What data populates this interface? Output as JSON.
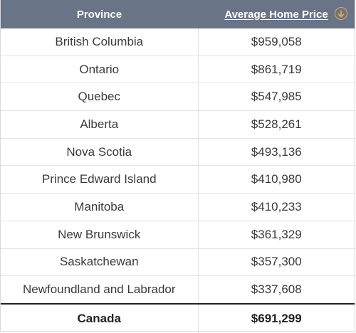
{
  "table": {
    "headers": {
      "province": "Province",
      "price": "Average Home Price"
    },
    "sort_icon": "arrow-down-circle-icon",
    "accent_color": "#f2a93b",
    "header_bg": "#697586",
    "rows": [
      {
        "province": "British Columbia",
        "price": "$959,058"
      },
      {
        "province": "Ontario",
        "price": "$861,719"
      },
      {
        "province": "Quebec",
        "price": "$547,985"
      },
      {
        "province": "Alberta",
        "price": "$528,261"
      },
      {
        "province": "Nova Scotia",
        "price": "$493,136"
      },
      {
        "province": "Prince Edward Island",
        "price": "$410,980"
      },
      {
        "province": "Manitoba",
        "price": "$410,233"
      },
      {
        "province": "New Brunswick",
        "price": "$361,329"
      },
      {
        "province": "Saskatchewan",
        "price": "$357,300"
      },
      {
        "province": "Newfoundland and Labrador",
        "price": "$337,608"
      }
    ],
    "total": {
      "province": "Canada",
      "price": "$691,299"
    }
  }
}
